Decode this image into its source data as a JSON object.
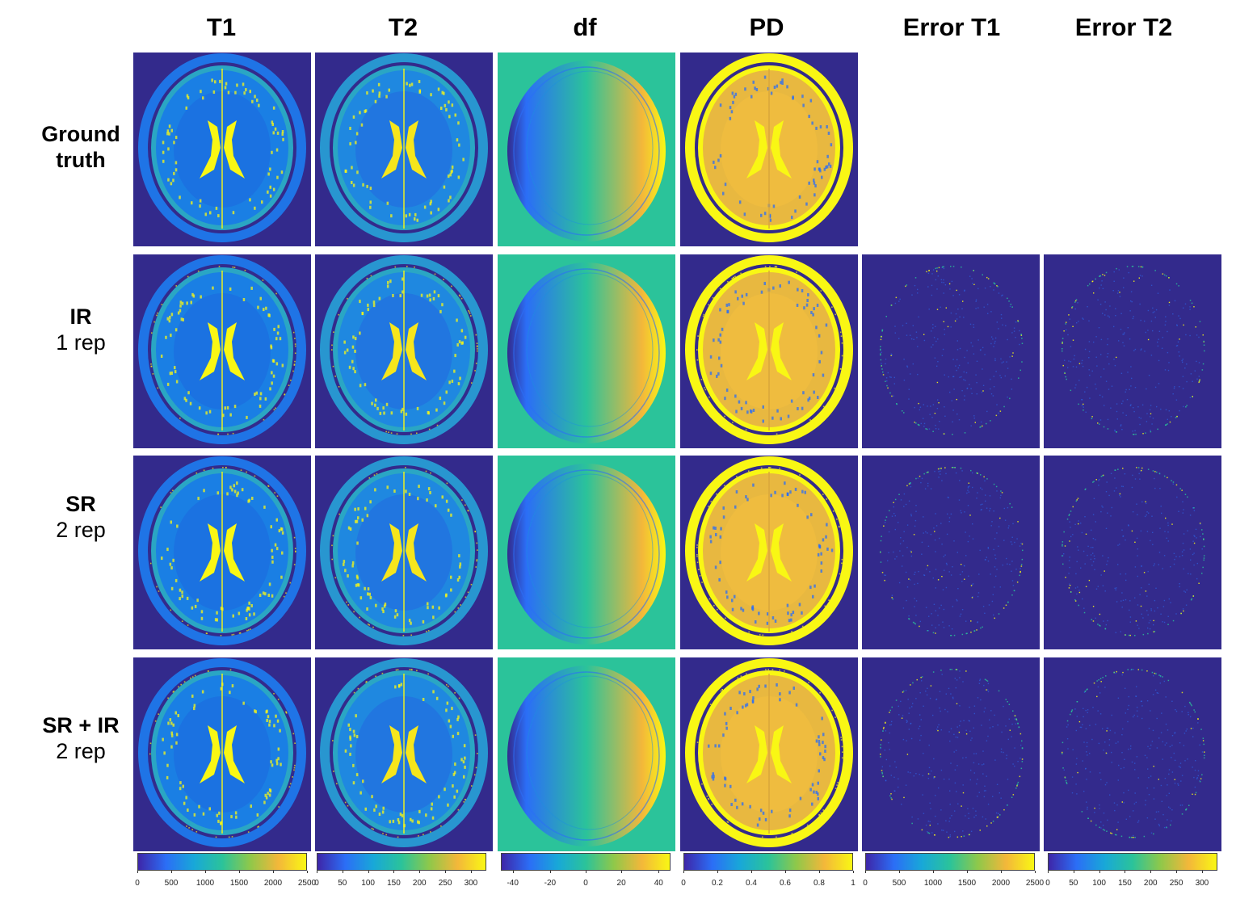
{
  "columns": [
    "T1",
    "T2",
    "df",
    "PD",
    "Error T1",
    "Error T2"
  ],
  "rows": [
    {
      "label_bold": "Ground truth",
      "label_line2": ""
    },
    {
      "label_bold": "IR",
      "label_line2": "1 rep"
    },
    {
      "label_bold": "SR",
      "label_line2": "2 rep"
    },
    {
      "label_bold": "SR + IR",
      "label_line2": "2 rep"
    }
  ],
  "colorbars": [
    {
      "name": "T1",
      "ticks": [
        "0",
        "500",
        "1000",
        "1500",
        "2000",
        "2500"
      ]
    },
    {
      "name": "T2",
      "ticks": [
        "0",
        "50",
        "100",
        "150",
        "200",
        "250",
        "300"
      ]
    },
    {
      "name": "df",
      "ticks": [
        "-40",
        "-20",
        "0",
        "20",
        "40"
      ]
    },
    {
      "name": "PD",
      "ticks": [
        "0",
        "0.2",
        "0.4",
        "0.6",
        "0.8",
        "1"
      ]
    },
    {
      "name": "Error T1",
      "ticks": [
        "0",
        "500",
        "1000",
        "1500",
        "2000",
        "2500"
      ]
    },
    {
      "name": "Error T2",
      "ticks": [
        "0",
        "50",
        "100",
        "150",
        "200",
        "250",
        "300"
      ]
    }
  ],
  "colors": {
    "background_map": "#332a8c",
    "parula_low": "#3e26a8",
    "parula_blue": "#2b6ef6",
    "parula_teal": "#2bc39a",
    "parula_orange": "#f3b73a",
    "parula_yellow": "#f9f714"
  }
}
